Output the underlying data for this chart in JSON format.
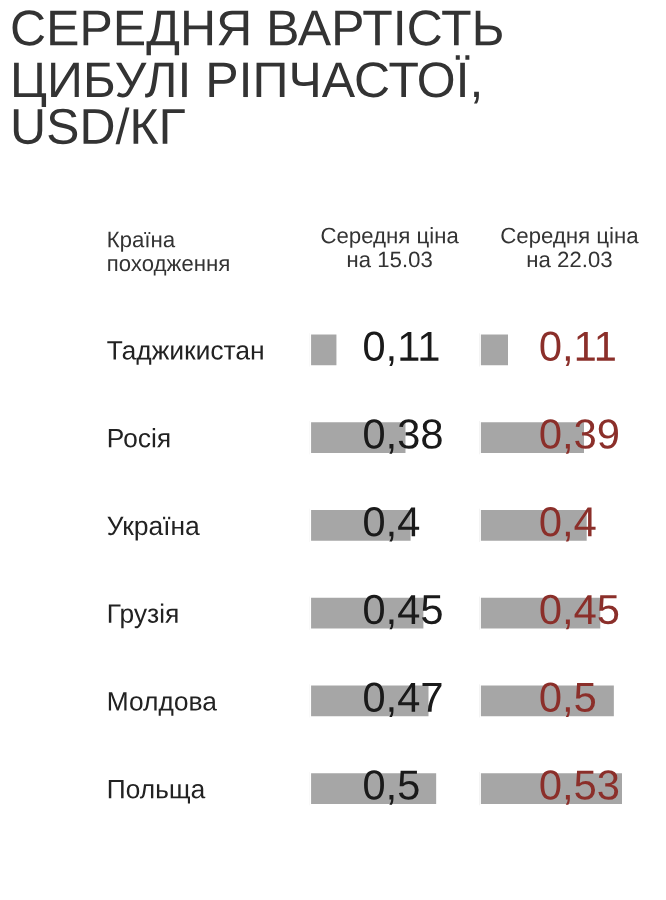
{
  "chart_data": [
    {
      "type": "bar",
      "orientation": "horizontal",
      "title": "СЕРЕДНЯ ВАРТІСТЬ\nЦИБУЛІ РІПЧАСТОЇ,\nUSD/КГ",
      "subtitle": "Середня ціна\nна 15.03",
      "ylabel": "Країна\nпоходження",
      "categories": [
        "Таджикистан",
        "Росія",
        "Україна",
        "Грузія",
        "Молдова",
        "Польща"
      ],
      "values": [
        0.11,
        0.38,
        0.4,
        0.45,
        0.47,
        0.5
      ],
      "value_labels": [
        "0,11",
        "0,38",
        "0,4",
        "0,45",
        "0,47",
        "0,5"
      ],
      "color": "#a6a6a6"
    },
    {
      "type": "bar",
      "orientation": "horizontal",
      "subtitle": "Середня ціна\nна 22.03",
      "categories": [
        null,
        null,
        null,
        null,
        null,
        null
      ],
      "values": [
        0.11,
        0.39,
        0.4,
        0.45,
        0.5,
        0.53
      ],
      "value_labels": [
        "0,11",
        "0,39",
        "0,4",
        "0,45",
        "0,5",
        "0,53"
      ],
      "color": "#a6a6a6"
    }
  ]
}
